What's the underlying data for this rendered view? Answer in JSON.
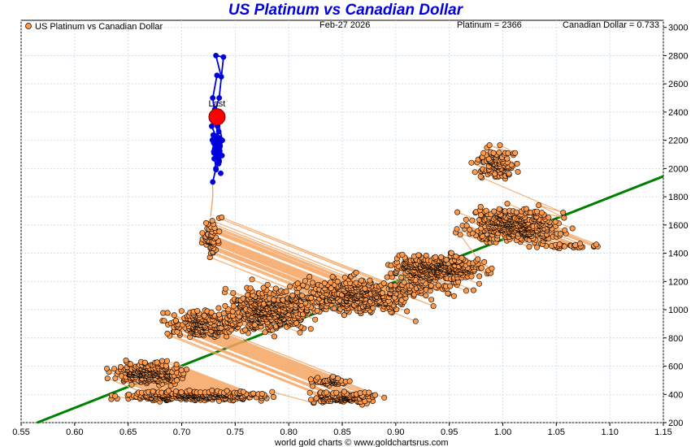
{
  "header": {
    "title": "US Platinum vs Canadian Dollar",
    "legend_label": "US Platinum vs Canadian Dollar",
    "date": "Feb-27  2026",
    "platinum_readout": "Platinum = 2366",
    "cad_readout": "Canadian Dollar = 0.733",
    "last_label": "Last",
    "footer": "world gold charts © www.goldchartsrus.com"
  },
  "colors": {
    "title": "#0000dd",
    "history_points": "#ff9a4a",
    "history_line": "#f4a460",
    "recent": "#0000dd",
    "last_point": "#ff0000",
    "trend": "#008000",
    "grid": "#c8d8e8"
  },
  "chart_data": {
    "type": "scatter",
    "title": "US Platinum vs Canadian Dollar",
    "xlabel": "",
    "ylabel": "",
    "xlim": [
      0.55,
      1.15
    ],
    "ylim": [
      200,
      3050
    ],
    "x_ticks": [
      "0.55",
      "0.60",
      "0.65",
      "0.70",
      "0.75",
      "0.80",
      "0.85",
      "0.90",
      "0.95",
      "1.00",
      "1.05",
      "1.10",
      "1.15"
    ],
    "y_ticks": [
      "200",
      "400",
      "600",
      "800",
      "1000",
      "1200",
      "1400",
      "1600",
      "1800",
      "2000",
      "2200",
      "2400",
      "2600",
      "2800",
      "3000"
    ],
    "legend": "top-left",
    "grid": true,
    "trend_line": {
      "from": [
        0.565,
        200
      ],
      "to": [
        1.15,
        1945
      ]
    },
    "history_clusters": [
      {
        "center": [
          0.67,
          550
        ],
        "spread": [
          0.03,
          70
        ],
        "count": 260
      },
      {
        "center": [
          0.71,
          390
        ],
        "spread": [
          0.06,
          35
        ],
        "count": 320
      },
      {
        "center": [
          0.85,
          380
        ],
        "spread": [
          0.03,
          40
        ],
        "count": 140
      },
      {
        "center": [
          0.84,
          490
        ],
        "spread": [
          0.02,
          25
        ],
        "count": 50
      },
      {
        "center": [
          0.72,
          900
        ],
        "spread": [
          0.03,
          90
        ],
        "count": 220
      },
      {
        "center": [
          0.78,
          1000
        ],
        "spread": [
          0.04,
          150
        ],
        "count": 420
      },
      {
        "center": [
          0.86,
          1100
        ],
        "spread": [
          0.05,
          120
        ],
        "count": 400
      },
      {
        "center": [
          0.94,
          1300
        ],
        "spread": [
          0.04,
          90
        ],
        "count": 380
      },
      {
        "center": [
          1.01,
          1600
        ],
        "spread": [
          0.04,
          110
        ],
        "count": 420
      },
      {
        "center": [
          0.995,
          2030
        ],
        "spread": [
          0.018,
          110
        ],
        "count": 110
      },
      {
        "center": [
          0.727,
          1520
        ],
        "spread": [
          0.01,
          120
        ],
        "count": 60
      },
      {
        "center": [
          1.06,
          1450
        ],
        "spread": [
          0.03,
          20
        ],
        "count": 30
      },
      {
        "center": [
          0.93,
          1150
        ],
        "spread": [
          0.04,
          60
        ],
        "count": 60
      }
    ],
    "recent_series": [
      [
        0.729,
        1905
      ],
      [
        0.732,
        2000
      ],
      [
        0.73,
        2120
      ],
      [
        0.735,
        2050
      ],
      [
        0.733,
        2210
      ],
      [
        0.728,
        2300
      ],
      [
        0.731,
        2420
      ],
      [
        0.734,
        2330
      ],
      [
        0.738,
        2200
      ],
      [
        0.736,
        2100
      ],
      [
        0.729,
        2500
      ],
      [
        0.733,
        2660
      ],
      [
        0.737,
        2650
      ],
      [
        0.732,
        2800
      ],
      [
        0.739,
        2790
      ],
      [
        0.735,
        2500
      ],
      [
        0.73,
        2380
      ],
      [
        0.733,
        2366
      ]
    ],
    "last_point": {
      "x": 0.733,
      "y": 2366,
      "label": "Last"
    }
  }
}
